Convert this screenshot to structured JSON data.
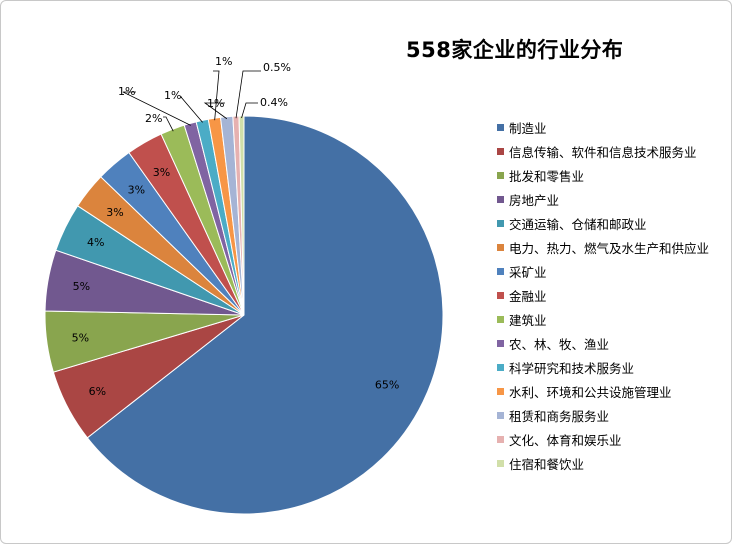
{
  "chart_data": {
    "type": "pie",
    "title": "558家企业的行业分布",
    "legend_position": "right",
    "slices": [
      {
        "label": "制造业",
        "value": 65,
        "pct_label": "65%",
        "color": "#4470A5"
      },
      {
        "label": "信息传输、软件和信息技术服务业",
        "value": 6,
        "pct_label": "6%",
        "color": "#AA4644"
      },
      {
        "label": "批发和零售业",
        "value": 5,
        "pct_label": "5%",
        "color": "#89A54E"
      },
      {
        "label": "房地产业",
        "value": 5,
        "pct_label": "5%",
        "color": "#71588F"
      },
      {
        "label": "交通运输、仓储和邮政业",
        "value": 4,
        "pct_label": "4%",
        "color": "#4198AF"
      },
      {
        "label": "电力、热力、燃气及水生产和供应业",
        "value": 3,
        "pct_label": "3%",
        "color": "#DB843D"
      },
      {
        "label": "采矿业",
        "value": 3,
        "pct_label": "3%",
        "color": "#4F81BD"
      },
      {
        "label": "金融业",
        "value": 3,
        "pct_label": "3%",
        "color": "#C0504D"
      },
      {
        "label": "建筑业",
        "value": 2,
        "pct_label": "2%",
        "color": "#9BBB59"
      },
      {
        "label": "农、林、牧、渔业",
        "value": 1,
        "pct_label": "1%",
        "color": "#8064A2"
      },
      {
        "label": "科学研究和技术服务业",
        "value": 1,
        "pct_label": "1%",
        "color": "#4BACC6"
      },
      {
        "label": "水利、环境和公共设施管理业",
        "value": 1,
        "pct_label": "1%",
        "color": "#F79646"
      },
      {
        "label": "租赁和商务服务业",
        "value": 1,
        "pct_label": "1%",
        "color": "#A5B4D5"
      },
      {
        "label": "文化、体育和娱乐业",
        "value": 0.5,
        "pct_label": "0.5%",
        "color": "#E6B1B0"
      },
      {
        "label": "住宿和餐饮业",
        "value": 0.4,
        "pct_label": "0.4%",
        "color": "#D1DFA9"
      }
    ]
  }
}
